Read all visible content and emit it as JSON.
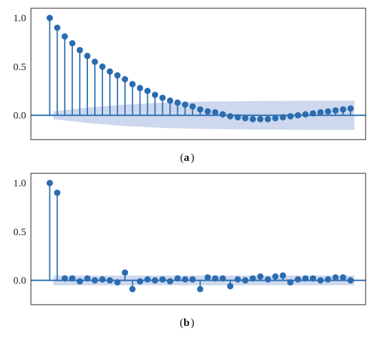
{
  "chart_data": [
    {
      "type": "stem",
      "panel_label": "a",
      "x": [
        0,
        1,
        2,
        3,
        4,
        5,
        6,
        7,
        8,
        9,
        10,
        11,
        12,
        13,
        14,
        15,
        16,
        17,
        18,
        19,
        20,
        21,
        22,
        23,
        24,
        25,
        26,
        27,
        28,
        29,
        30,
        31,
        32,
        33,
        34,
        35,
        36,
        37,
        38,
        39,
        40
      ],
      "values": [
        1.0,
        0.9,
        0.81,
        0.74,
        0.67,
        0.61,
        0.55,
        0.5,
        0.45,
        0.41,
        0.37,
        0.32,
        0.28,
        0.25,
        0.21,
        0.18,
        0.15,
        0.13,
        0.11,
        0.09,
        0.06,
        0.04,
        0.03,
        0.01,
        -0.01,
        -0.02,
        -0.03,
        -0.04,
        -0.04,
        -0.04,
        -0.03,
        -0.02,
        -0.01,
        0.0,
        0.01,
        0.02,
        0.03,
        0.04,
        0.05,
        0.06,
        0.07
      ],
      "yticks": [
        0.0,
        0.5,
        1.0
      ],
      "ytick_labels": [
        "0.0",
        "0.5",
        "1.0"
      ],
      "ylim": [
        -0.25,
        1.1
      ],
      "xlim": [
        -2.5,
        42
      ],
      "confidence_band": [
        {
          "x": 0.5,
          "half_width": 0.04
        },
        {
          "x": 5,
          "half_width": 0.08
        },
        {
          "x": 10,
          "half_width": 0.11
        },
        {
          "x": 15,
          "half_width": 0.13
        },
        {
          "x": 20,
          "half_width": 0.14
        },
        {
          "x": 25,
          "half_width": 0.145
        },
        {
          "x": 30,
          "half_width": 0.148
        },
        {
          "x": 35,
          "half_width": 0.15
        },
        {
          "x": 40.5,
          "half_width": 0.15
        }
      ],
      "zero_line": true,
      "grid": false
    },
    {
      "type": "stem",
      "panel_label": "b",
      "x": [
        0,
        1,
        2,
        3,
        4,
        5,
        6,
        7,
        8,
        9,
        10,
        11,
        12,
        13,
        14,
        15,
        16,
        17,
        18,
        19,
        20,
        21,
        22,
        23,
        24,
        25,
        26,
        27,
        28,
        29,
        30,
        31,
        32,
        33,
        34,
        35,
        36,
        37,
        38,
        39,
        40
      ],
      "values": [
        1.0,
        0.9,
        0.02,
        0.02,
        -0.01,
        0.02,
        0.0,
        0.01,
        0.0,
        -0.02,
        0.08,
        -0.09,
        -0.01,
        0.01,
        0.0,
        0.01,
        -0.01,
        0.02,
        0.01,
        0.01,
        -0.09,
        0.03,
        0.02,
        0.02,
        -0.06,
        0.01,
        0.0,
        0.02,
        0.04,
        0.01,
        0.04,
        0.05,
        -0.02,
        0.01,
        0.02,
        0.02,
        0.0,
        0.01,
        0.03,
        0.03,
        0.0
      ],
      "yticks": [
        0.0,
        0.5,
        1.0
      ],
      "ytick_labels": [
        "0.0",
        "0.5",
        "1.0"
      ],
      "ylim": [
        -0.25,
        1.1
      ],
      "xlim": [
        -2.5,
        42
      ],
      "confidence_band": [
        {
          "x": 0.5,
          "half_width": 0.05
        },
        {
          "x": 40.5,
          "half_width": 0.05
        }
      ],
      "zero_line": true,
      "grid": false
    }
  ],
  "colors": {
    "stem": "#2b6cb0",
    "band": "#cdd8ee",
    "frame": "#222222"
  }
}
